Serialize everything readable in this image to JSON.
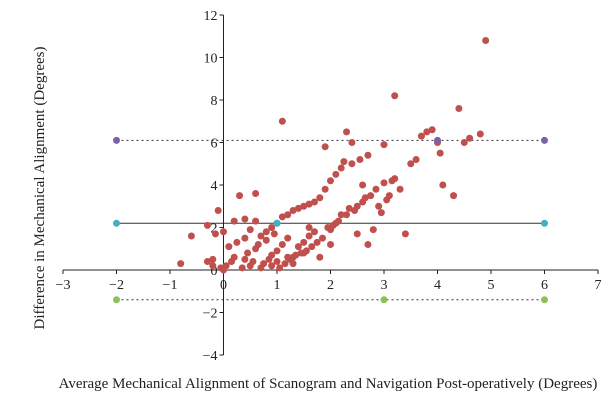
{
  "chart_data": {
    "type": "scatter",
    "title": "",
    "xlabel": "Average Mechanical Alignment of Scanogram and Navigation Post-operatively (Degrees)",
    "ylabel": "Difference in Mechanical Alignment (Degrees)",
    "xlim": [
      -3,
      7
    ],
    "ylim": [
      -4,
      12
    ],
    "x_ticks": [
      -3,
      -2,
      -1,
      0,
      1,
      2,
      3,
      4,
      5,
      6,
      7
    ],
    "y_ticks": [
      -4,
      -2,
      0,
      2,
      4,
      6,
      8,
      10,
      12
    ],
    "x_tick_labels": [
      "−3",
      "−2",
      "−1",
      "0",
      "1",
      "2",
      "3",
      "4",
      "5",
      "6",
      "7"
    ],
    "y_tick_labels": [
      "−4",
      "−2",
      "0",
      "2",
      "4",
      "6",
      "8",
      "10",
      "12"
    ],
    "grid": false,
    "reference_lines": [
      {
        "y": 6.1,
        "style": "dotted",
        "color": "#333333",
        "marker_color": "#7b61a8",
        "markers_x": [
          -2,
          4,
          6
        ]
      },
      {
        "y": 2.2,
        "style": "solid",
        "color": "#333333",
        "marker_color": "#3fb1c4",
        "markers_x": [
          -2,
          1,
          6
        ]
      },
      {
        "y": -1.4,
        "style": "dotted",
        "color": "#333333",
        "marker_color": "#8fc058",
        "markers_x": [
          -2,
          3,
          6
        ]
      }
    ],
    "marker_color": "#c0504d",
    "series": [
      {
        "x": [
          -0.8,
          -0.6,
          -0.3,
          -0.3,
          -0.2,
          -0.15,
          -0.1,
          -0.05,
          0,
          0,
          0.05,
          0.1,
          0.15,
          0.2,
          0.2,
          0.25,
          0.3,
          0.35,
          0.4,
          0.4,
          0.45,
          0.5,
          0.5,
          0.55,
          0.6,
          0.6,
          0.65,
          0.7,
          0.7,
          0.75,
          0.8,
          0.8,
          0.85,
          0.9,
          0.9,
          0.95,
          1.0,
          1.0,
          1.05,
          1.1,
          1.1,
          1.15,
          1.2,
          1.2,
          1.25,
          1.3,
          1.3,
          1.35,
          1.4,
          1.4,
          1.45,
          1.5,
          1.5,
          1.55,
          1.6,
          1.6,
          1.65,
          1.7,
          1.7,
          1.75,
          1.8,
          1.85,
          1.9,
          1.95,
          2.0,
          2.0,
          2.05,
          2.1,
          2.15,
          2.2,
          2.25,
          2.3,
          2.35,
          2.4,
          2.45,
          2.5,
          2.55,
          2.6,
          2.65,
          2.7,
          2.75,
          2.8,
          2.85,
          2.9,
          2.95,
          3.0,
          3.05,
          3.1,
          3.15,
          3.2,
          3.3,
          3.4,
          3.5,
          3.6,
          3.7,
          3.8,
          3.9,
          4.0,
          4.05,
          4.1,
          4.3,
          4.4,
          4.5,
          4.6,
          4.8,
          4.9,
          1.1,
          1.2,
          1.5,
          1.8,
          2.0,
          2.3,
          2.5,
          2.7,
          3.2,
          2.4,
          1.9,
          0.6,
          0.9,
          1.3,
          2.2,
          0.4,
          1.0,
          -0.2,
          2.6,
          3.0,
          1.6,
          2.1
        ],
        "y": [
          0.3,
          1.6,
          0.4,
          2.1,
          0.5,
          1.7,
          2.8,
          0.1,
          0,
          1.8,
          0.2,
          1.1,
          0.4,
          2.3,
          0.6,
          1.3,
          3.5,
          0.1,
          1.5,
          0.5,
          0.8,
          0.2,
          1.9,
          0.4,
          1.0,
          2.3,
          1.2,
          0.1,
          1.6,
          0.3,
          1.4,
          1.8,
          0.5,
          2.0,
          0.7,
          1.7,
          2.2,
          0.9,
          0.1,
          2.5,
          1.2,
          0.3,
          2.6,
          1.5,
          0.5,
          2.8,
          0.3,
          0.7,
          2.9,
          1.1,
          0.8,
          3.0,
          1.3,
          0.9,
          3.1,
          1.6,
          1.1,
          3.2,
          1.8,
          1.3,
          3.4,
          1.5,
          3.8,
          2.0,
          4.2,
          1.9,
          2.1,
          4.5,
          2.3,
          2.6,
          5.1,
          2.6,
          2.9,
          5.0,
          2.8,
          3.0,
          5.2,
          3.2,
          3.4,
          5.4,
          3.5,
          1.9,
          3.8,
          3.0,
          2.7,
          4.1,
          3.3,
          3.5,
          4.2,
          8.2,
          3.8,
          1.7,
          5.0,
          5.2,
          6.3,
          6.5,
          6.6,
          6.0,
          5.5,
          4.0,
          3.5,
          7.6,
          6.0,
          6.2,
          6.4,
          10.8,
          7.0,
          0.6,
          0.8,
          0.6,
          1.2,
          6.5,
          1.7,
          1.2,
          4.3,
          6.0,
          5.8,
          3.6,
          0.2,
          0.6,
          4.8,
          2.4,
          0.4,
          0.2,
          4.0,
          5.9,
          2.0,
          2.2
        ]
      }
    ]
  }
}
